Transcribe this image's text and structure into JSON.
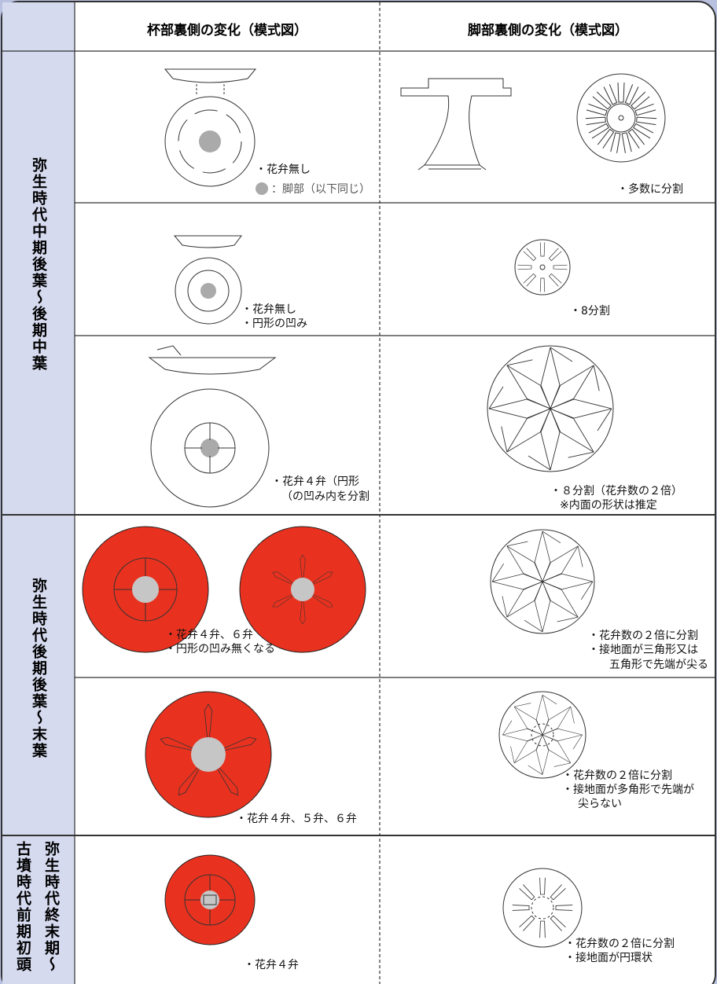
{
  "header": {
    "columns": [
      "杯部裏側の変化（模式図）",
      "脚部裏側の変化（模式図）"
    ]
  },
  "periods": [
    {
      "label": [
        "弥生時代中期後葉～後期中葉"
      ],
      "rows": [
        {
          "cup_notes": [
            "・花弁無し"
          ],
          "legend": "：脚部（以下同じ）",
          "foot_notes": [
            "・多数に分割"
          ]
        },
        {
          "cup_notes": [
            "・花弁無し",
            "・円形の凹み"
          ],
          "foot_notes": [
            "・8分割"
          ]
        },
        {
          "cup_notes": [
            "・花弁４弁（円形",
            "（の凹み内を分割"
          ],
          "foot_notes": [
            "・８分割（花弁数の２倍）",
            "※内面の形状は推定"
          ]
        }
      ]
    },
    {
      "label": [
        "弥生時代後期後葉～末葉"
      ],
      "rows": [
        {
          "cup_notes": [
            "・花弁４弁、６弁",
            "・円形の凹み無くなる"
          ],
          "foot_notes": [
            "・花弁数の２倍に分割",
            "・接地面が三角形又は",
            "五角形で先端が尖る"
          ]
        },
        {
          "cup_notes": [
            "・花弁４弁、５弁、６弁"
          ],
          "foot_notes": [
            "・花弁数の２倍に分割",
            "・接地面が多角形で先端が",
            "尖らない"
          ]
        }
      ]
    },
    {
      "label": [
        "弥生時代終末期～",
        "古墳時代前期初頭"
      ],
      "rows": [
        {
          "cup_notes": [
            "・花弁４弁"
          ],
          "foot_notes": [
            "・花弁数の２倍に分割",
            "・接地面が円環状"
          ]
        }
      ]
    }
  ]
}
